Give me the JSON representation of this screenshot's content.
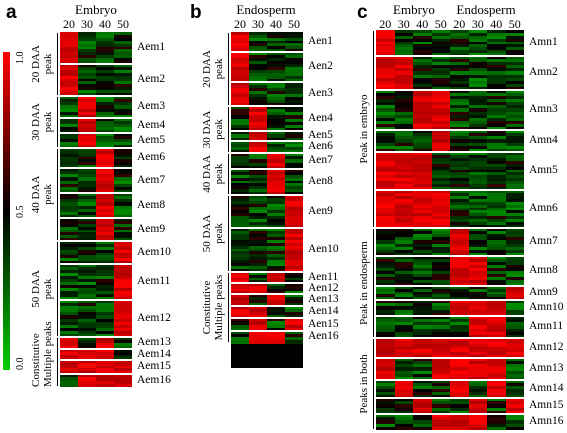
{
  "panels": {
    "a": {
      "letter": "a",
      "title": "Embryo",
      "columns": [
        "20",
        "30",
        "40",
        "50"
      ],
      "colorbar_ticks": [
        "1.0",
        "0.5",
        "0.0"
      ],
      "colorbar_colors": [
        "#ff0000",
        "#000000",
        "#00cc00"
      ],
      "groups": [
        {
          "label": "20 DAA\npeak",
          "genes": [
            "Aem1",
            "Aem2"
          ]
        },
        {
          "label": "30 DAA\npeak",
          "genes": [
            "Aem3",
            "Aem4",
            "Aem5"
          ]
        },
        {
          "label": "40 DAA\npeak",
          "genes": [
            "Aem6",
            "Aem7",
            "Aem8",
            "Aem9"
          ]
        },
        {
          "label": "50 DAA\npeak",
          "genes": [
            "Aem10",
            "Aem11",
            "Aem12"
          ]
        },
        {
          "label": "Constitutive\nMultiple peaks",
          "genes": [
            "Aem13",
            "Aem14",
            "Aem15",
            "Aem16"
          ]
        }
      ]
    },
    "b": {
      "letter": "b",
      "title": "Endosperm",
      "columns": [
        "20",
        "30",
        "40",
        "50"
      ],
      "groups": [
        {
          "label": "20 DAA\npeak",
          "genes": [
            "Aen1",
            "Aen2",
            "Aen3"
          ]
        },
        {
          "label": "30 DAA\npeak",
          "genes": [
            "Aen4",
            "Aen5",
            "Aen6"
          ]
        },
        {
          "label": "40 DAA\npeak",
          "genes": [
            "Aen7",
            "Aen8"
          ]
        },
        {
          "label": "50 DAA\npeak",
          "genes": [
            "Aen9",
            "Aen10"
          ]
        },
        {
          "label": "Constitutive\nMultiple peaks",
          "genes": [
            "Aen11",
            "Aen12",
            "Aen13",
            "Aen14",
            "Aen15",
            "Aen16"
          ]
        }
      ]
    },
    "c": {
      "letter": "c",
      "titles": [
        "Embryo",
        "Endosperm"
      ],
      "columns": [
        "20",
        "30",
        "40",
        "50",
        "20",
        "30",
        "40",
        "50"
      ],
      "groups": [
        {
          "label": "Peak in embryo",
          "genes": [
            "Amn1",
            "Amn2",
            "Amn3",
            "Amn4",
            "Amn5",
            "Amn6"
          ]
        },
        {
          "label": "Peak in endosperm",
          "genes": [
            "Amn7",
            "Amn8",
            "Amn9",
            "Amn10",
            "Amn11"
          ]
        },
        {
          "label": "Peaks in both",
          "genes": [
            "Amn12",
            "Amn13",
            "Amn14",
            "Amn15",
            "Amn16"
          ]
        }
      ]
    }
  }
}
